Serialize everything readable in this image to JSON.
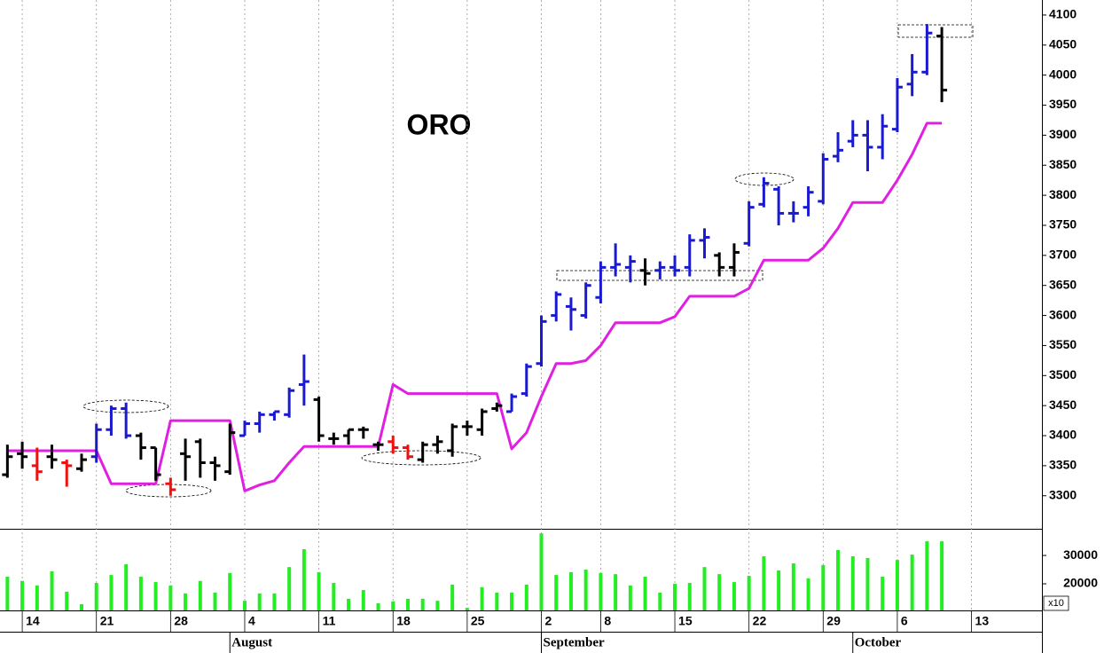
{
  "chart_data": {
    "type": "ohlc",
    "title": "ORO",
    "xlim": [
      -0.5,
      69.75
    ],
    "xticks": [
      {
        "value": 1,
        "label": "14"
      },
      {
        "value": 6,
        "label": "21"
      },
      {
        "value": 11,
        "label": "28"
      },
      {
        "value": 16,
        "label": "4"
      },
      {
        "value": 21,
        "label": "11"
      },
      {
        "value": 26,
        "label": "18"
      },
      {
        "value": 31,
        "label": "25"
      },
      {
        "value": 36,
        "label": "2"
      },
      {
        "value": 40,
        "label": "8"
      },
      {
        "value": 45,
        "label": "15"
      },
      {
        "value": 50,
        "label": "22"
      },
      {
        "value": 55,
        "label": "29"
      },
      {
        "value": 60,
        "label": "6"
      },
      {
        "value": 65,
        "label": "13"
      }
    ],
    "month_ticks": [
      {
        "value": 15,
        "label": "August"
      },
      {
        "value": 36,
        "label": "September"
      },
      {
        "value": 57,
        "label": "October"
      }
    ],
    "grid": true,
    "price": {
      "ylim": [
        3245,
        4125
      ],
      "yticks": [
        3300,
        3350,
        3400,
        3450,
        3500,
        3550,
        3600,
        3650,
        3700,
        3750,
        3800,
        3850,
        3900,
        3950,
        4000,
        4050,
        4100
      ],
      "open": [
        3335,
        3370,
        3350,
        3365,
        3355,
        3345,
        3365,
        3410,
        3445,
        3400,
        3380,
        3320,
        3370,
        3390,
        3355,
        3340,
        3400,
        3420,
        3435,
        3435,
        3485,
        3460,
        3395,
        3400,
        3410,
        3385,
        3390,
        3380,
        3360,
        3385,
        3375,
        3415,
        3410,
        3445,
        3440,
        3470,
        3520,
        3600,
        3615,
        3600,
        3630,
        3680,
        3680,
        3675,
        3675,
        3680,
        3680,
        3725,
        3700,
        3680,
        3720,
        3785,
        3810,
        3770,
        3780,
        3790,
        3865,
        3890,
        3900,
        3880,
        3910,
        3985,
        4005,
        4065
      ],
      "high": [
        3385,
        3390,
        3380,
        3385,
        3360,
        3370,
        3420,
        3450,
        3455,
        3405,
        3380,
        3330,
        3395,
        3395,
        3365,
        3420,
        3425,
        3440,
        3440,
        3480,
        3535,
        3465,
        3405,
        3410,
        3415,
        3390,
        3400,
        3385,
        3390,
        3400,
        3420,
        3425,
        3445,
        3455,
        3470,
        3520,
        3600,
        3640,
        3630,
        3655,
        3690,
        3720,
        3700,
        3695,
        3690,
        3700,
        3735,
        3745,
        3705,
        3720,
        3790,
        3830,
        3815,
        3790,
        3815,
        3870,
        3905,
        3925,
        3925,
        3935,
        3995,
        4035,
        4085,
        4080
      ],
      "low": [
        3330,
        3345,
        3325,
        3345,
        3315,
        3340,
        3355,
        3400,
        3395,
        3360,
        3325,
        3300,
        3325,
        3330,
        3325,
        3335,
        3400,
        3405,
        3425,
        3430,
        3450,
        3390,
        3385,
        3385,
        3395,
        3375,
        3370,
        3360,
        3355,
        3370,
        3365,
        3400,
        3400,
        3440,
        3440,
        3465,
        3515,
        3590,
        3575,
        3595,
        3620,
        3665,
        3655,
        3650,
        3660,
        3665,
        3665,
        3695,
        3665,
        3665,
        3715,
        3780,
        3750,
        3755,
        3765,
        3785,
        3855,
        3880,
        3840,
        3860,
        3905,
        3965,
        4000,
        3955
      ],
      "close": [
        3365,
        3365,
        3340,
        3360,
        3350,
        3360,
        3410,
        3445,
        3400,
        3380,
        3335,
        3310,
        3365,
        3355,
        3350,
        3405,
        3420,
        3435,
        3440,
        3475,
        3490,
        3400,
        3395,
        3410,
        3410,
        3385,
        3380,
        3365,
        3385,
        3390,
        3415,
        3415,
        3440,
        3450,
        3465,
        3515,
        3590,
        3635,
        3610,
        3650,
        3680,
        3685,
        3690,
        3670,
        3680,
        3675,
        3725,
        3730,
        3680,
        3705,
        3780,
        3820,
        3770,
        3770,
        3805,
        3860,
        3875,
        3900,
        3880,
        3915,
        3980,
        4005,
        4070,
        3975
      ],
      "colors": [
        "#000000",
        "#000000",
        "#ee1111",
        "#000000",
        "#ee1111",
        "#000000",
        "#1a1ad0",
        "#1a1ad0",
        "#1a1ad0",
        "#000000",
        "#000000",
        "#ee1111",
        "#000000",
        "#000000",
        "#000000",
        "#000000",
        "#1a1ad0",
        "#1a1ad0",
        "#1a1ad0",
        "#1a1ad0",
        "#1a1ad0",
        "#000000",
        "#000000",
        "#000000",
        "#000000",
        "#000000",
        "#ee1111",
        "#ee1111",
        "#000000",
        "#000000",
        "#000000",
        "#000000",
        "#000000",
        "#000000",
        "#1a1ad0",
        "#1a1ad0",
        "#1a1ad0",
        "#1a1ad0",
        "#1a1ad0",
        "#1a1ad0",
        "#1a1ad0",
        "#1a1ad0",
        "#1a1ad0",
        "#000000",
        "#1a1ad0",
        "#1a1ad0",
        "#1a1ad0",
        "#1a1ad0",
        "#000000",
        "#000000",
        "#1a1ad0",
        "#1a1ad0",
        "#1a1ad0",
        "#1a1ad0",
        "#1a1ad0",
        "#1a1ad0",
        "#1a1ad0",
        "#1a1ad0",
        "#1a1ad0",
        "#1a1ad0",
        "#1a1ad0",
        "#1a1ad0",
        "#1a1ad0",
        "#000000"
      ]
    },
    "stop_line": {
      "color": "#e020e0",
      "values": [
        3375,
        3375,
        3375,
        3375,
        3375,
        3375,
        3375,
        3320,
        3320,
        3320,
        3320,
        3425,
        3425,
        3425,
        3425,
        3425,
        3308,
        3318,
        3325,
        3355,
        3382,
        3382,
        3382,
        3382,
        3382,
        3382,
        3485,
        3470,
        3470,
        3470,
        3470,
        3470,
        3470,
        3470,
        3378,
        3405,
        3465,
        3520,
        3520,
        3525,
        3550,
        3588,
        3588,
        3588,
        3588,
        3598,
        3632,
        3632,
        3632,
        3632,
        3645,
        3692,
        3692,
        3692,
        3692,
        3712,
        3745,
        3788,
        3788,
        3788,
        3825,
        3868,
        3920,
        3920
      ]
    },
    "volume": {
      "color": "#22ee22",
      "ylim": [
        10600,
        39100
      ],
      "yticks": [
        20000,
        30000
      ],
      "multiplier_label": "x10",
      "values": [
        22500,
        21000,
        19400,
        24400,
        17200,
        12800,
        20300,
        23100,
        26900,
        22500,
        20600,
        19400,
        16600,
        21000,
        16900,
        23800,
        14000,
        16600,
        16600,
        25900,
        32200,
        24100,
        20300,
        14700,
        17800,
        13100,
        13800,
        14700,
        14700,
        14000,
        19700,
        11500,
        18800,
        16900,
        16900,
        19700,
        37800,
        23100,
        24100,
        25000,
        23800,
        23400,
        19400,
        22500,
        16900,
        20000,
        20300,
        25900,
        23400,
        20600,
        22800,
        29700,
        24700,
        27200,
        21900,
        26600,
        31900,
        29700,
        29100,
        22500,
        28400,
        30300,
        35000,
        35000
      ]
    }
  }
}
